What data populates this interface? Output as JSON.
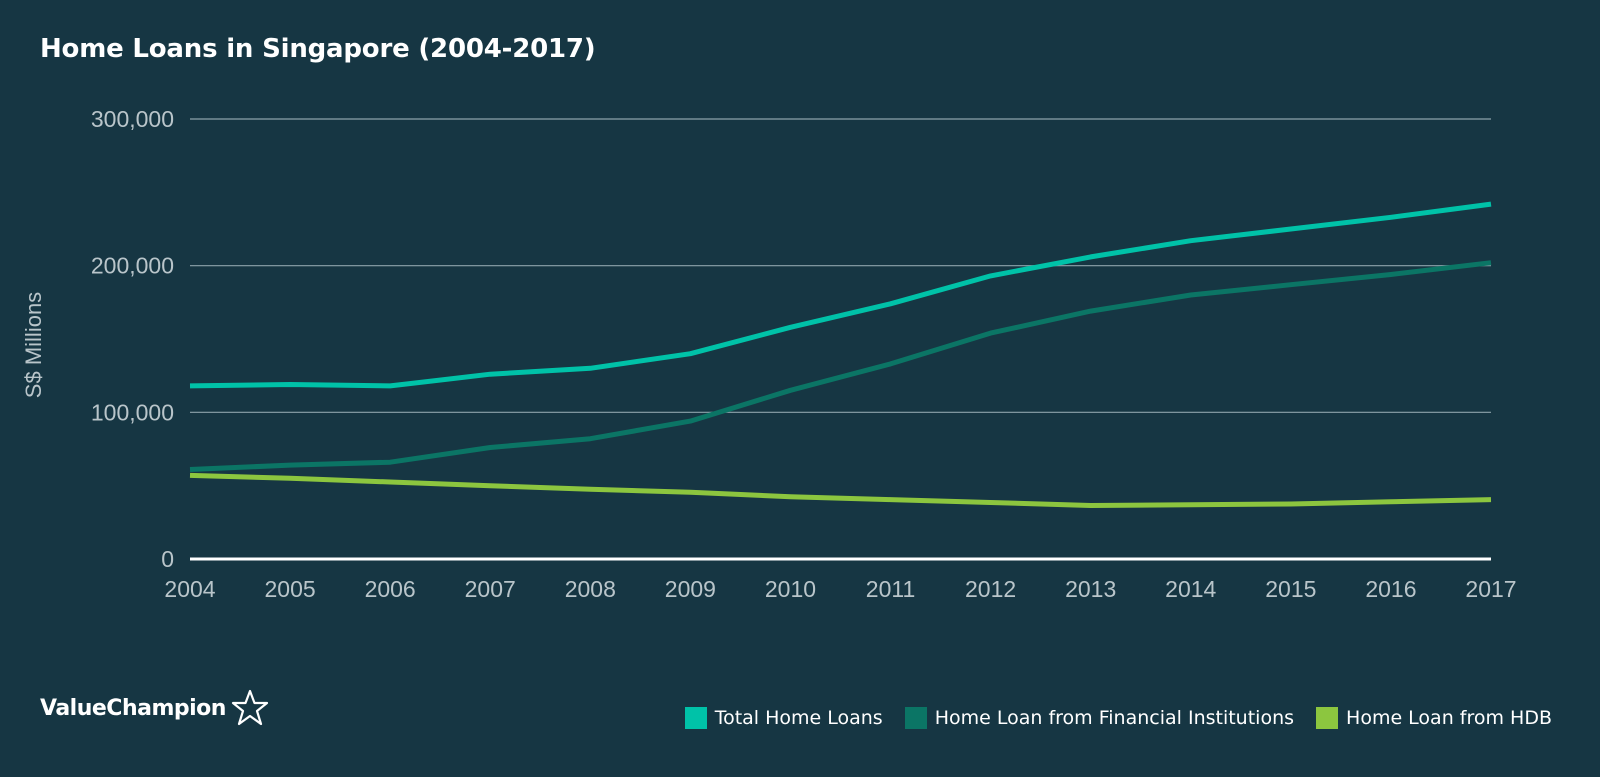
{
  "chart_data": {
    "type": "line",
    "title": "Home Loans in Singapore (2004-2017)",
    "ylabel": "S$ Millions",
    "xlabel": "",
    "x": [
      "2004",
      "2005",
      "2006",
      "2007",
      "2008",
      "2009",
      "2010",
      "2011",
      "2012",
      "2013",
      "2014",
      "2015",
      "2016",
      "2017"
    ],
    "ylim": [
      0,
      300000
    ],
    "yticks": [
      0,
      100000,
      200000,
      300000
    ],
    "ytick_labels": [
      "0",
      "100,000",
      "200,000",
      "300,000"
    ],
    "grid": true,
    "legend_position": "bottom-right",
    "series": [
      {
        "name": "Total Home Loans",
        "color": "#00c2a8",
        "values": [
          118000,
          119000,
          118000,
          126000,
          130000,
          140000,
          158000,
          174000,
          193000,
          206000,
          217000,
          225000,
          233000,
          242000
        ]
      },
      {
        "name": "Home Loan from Financial Institutions",
        "color": "#0b7565",
        "values": [
          61000,
          64000,
          66000,
          76000,
          82000,
          94000,
          115000,
          133000,
          154000,
          169000,
          180000,
          187000,
          194000,
          202000
        ]
      },
      {
        "name": "Home Loan from HDB",
        "color": "#8cc63f",
        "values": [
          57000,
          55000,
          52500,
          50000,
          47500,
          45500,
          42500,
          40500,
          38500,
          36500,
          37000,
          37500,
          39000,
          40500
        ]
      }
    ]
  },
  "brand": {
    "name": "ValueChampion",
    "icon": "star-outline-icon"
  }
}
